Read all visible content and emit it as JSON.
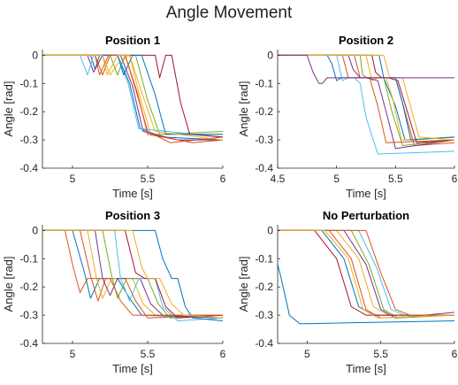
{
  "figure_title": "Angle Movement",
  "colors": {
    "axis": "#262626",
    "text": "#262626",
    "series_palette": [
      "#0072BD",
      "#D95319",
      "#EDB120",
      "#7E2F8E",
      "#77AC30",
      "#4DBEEE",
      "#A2142F"
    ]
  },
  "chart_data": [
    {
      "type": "line",
      "title": "Position 1",
      "xlabel": "Time [s]",
      "ylabel": "Angle [rad]",
      "xlim": [
        4.8,
        6.0
      ],
      "ylim": [
        -0.4,
        0.02
      ],
      "xticks": [
        5,
        5.5,
        6
      ],
      "xtick_labels": [
        "5",
        "5.5",
        "6"
      ],
      "yticks": [
        0,
        -0.1,
        -0.2,
        -0.3,
        -0.4
      ],
      "ytick_labels": [
        "0",
        "-0.1",
        "-0.2",
        "-0.3",
        "-0.4"
      ],
      "grid": false,
      "series": [
        {
          "x": [
            4.8,
            5.12,
            5.15,
            5.18,
            5.3,
            5.38,
            5.45,
            5.6,
            6.0
          ],
          "y": [
            0.0,
            0.0,
            -0.05,
            0.0,
            0.0,
            -0.1,
            -0.26,
            -0.29,
            -0.3
          ]
        },
        {
          "x": [
            4.8,
            5.15,
            5.2,
            5.25,
            5.35,
            5.42,
            5.5,
            5.65,
            6.0
          ],
          "y": [
            0.0,
            0.0,
            -0.07,
            0.0,
            0.0,
            -0.12,
            -0.27,
            -0.31,
            -0.29
          ]
        },
        {
          "x": [
            4.8,
            5.2,
            5.25,
            5.3,
            5.38,
            5.45,
            5.52,
            6.0
          ],
          "y": [
            0.0,
            0.0,
            -0.07,
            -0.03,
            0.0,
            -0.15,
            -0.28,
            -0.28
          ]
        },
        {
          "x": [
            4.8,
            5.1,
            5.14,
            5.2,
            5.32,
            5.4,
            5.47,
            5.7,
            6.0
          ],
          "y": [
            0.0,
            0.0,
            -0.06,
            0.0,
            0.0,
            -0.11,
            -0.27,
            -0.3,
            -0.3
          ]
        },
        {
          "x": [
            4.8,
            5.25,
            5.3,
            5.35,
            5.42,
            5.5,
            5.58,
            6.0
          ],
          "y": [
            0.0,
            0.0,
            -0.07,
            0.0,
            0.0,
            -0.16,
            -0.28,
            -0.27
          ]
        },
        {
          "x": [
            4.8,
            5.05,
            5.1,
            5.14,
            5.3,
            5.37,
            5.44,
            6.0
          ],
          "y": [
            0.0,
            0.0,
            -0.07,
            0.0,
            0.0,
            -0.1,
            -0.26,
            -0.29
          ]
        },
        {
          "x": [
            4.8,
            5.55,
            5.58,
            5.62,
            5.66,
            5.72,
            5.78,
            6.0
          ],
          "y": [
            0.0,
            0.0,
            -0.08,
            0.0,
            0.0,
            -0.17,
            -0.28,
            -0.29
          ]
        },
        {
          "x": [
            4.8,
            5.3,
            5.34,
            5.4,
            5.46,
            5.55,
            5.62,
            6.0
          ],
          "y": [
            0.0,
            0.0,
            -0.07,
            0.0,
            0.0,
            -0.14,
            -0.28,
            -0.28
          ]
        },
        {
          "x": [
            4.8,
            5.15,
            5.18,
            5.24,
            5.35,
            5.43,
            5.5,
            5.8,
            6.0
          ],
          "y": [
            0.0,
            0.0,
            -0.07,
            0.0,
            0.0,
            -0.13,
            -0.28,
            -0.31,
            -0.3
          ]
        },
        {
          "x": [
            4.8,
            5.2,
            5.23,
            5.3,
            5.38,
            5.46,
            5.55,
            6.0
          ],
          "y": [
            0.0,
            0.0,
            -0.07,
            0.0,
            0.0,
            -0.13,
            -0.27,
            -0.3
          ]
        }
      ]
    },
    {
      "type": "line",
      "title": "Position 2",
      "xlabel": "Time [s]",
      "ylabel": "Angle [rad]",
      "xlim": [
        4.5,
        6.0
      ],
      "ylim": [
        -0.4,
        0.02
      ],
      "xticks": [
        4.5,
        5,
        5.5,
        6
      ],
      "xtick_labels": [
        "4.5",
        "5",
        "5.5",
        "6"
      ],
      "yticks": [
        0,
        -0.1,
        -0.2,
        -0.3,
        -0.4
      ],
      "ytick_labels": [
        "0",
        "-0.1",
        "-0.2",
        "-0.3",
        "-0.4"
      ],
      "grid": false,
      "series": [
        {
          "x": [
            4.5,
            4.92,
            4.96,
            5.0,
            5.04,
            5.1,
            5.4,
            5.5,
            5.58,
            6.0
          ],
          "y": [
            0.0,
            0.0,
            -0.03,
            -0.09,
            -0.08,
            -0.08,
            -0.08,
            -0.18,
            -0.3,
            -0.29
          ]
        },
        {
          "x": [
            4.5,
            5.15,
            5.2,
            5.25,
            5.3,
            5.5,
            5.58,
            5.66,
            6.0
          ],
          "y": [
            0.0,
            0.0,
            -0.08,
            -0.08,
            -0.08,
            -0.08,
            -0.2,
            -0.32,
            -0.31
          ]
        },
        {
          "x": [
            4.5,
            5.25,
            5.3,
            5.35,
            5.42,
            5.48,
            5.55,
            6.0
          ],
          "y": [
            0.0,
            0.0,
            -0.09,
            -0.08,
            -0.08,
            -0.16,
            -0.3,
            -0.29
          ]
        },
        {
          "x": [
            4.5,
            5.1,
            5.14,
            5.2,
            5.25,
            5.35,
            5.42,
            5.5,
            6.0
          ],
          "y": [
            0.0,
            0.0,
            -0.05,
            -0.08,
            -0.08,
            -0.09,
            -0.2,
            -0.33,
            -0.3
          ]
        },
        {
          "x": [
            4.5,
            5.2,
            5.22,
            5.26,
            5.3,
            5.4,
            5.47,
            5.56,
            6.0
          ],
          "y": [
            0.0,
            0.0,
            -0.07,
            -0.08,
            -0.08,
            -0.08,
            -0.2,
            -0.32,
            -0.3
          ]
        },
        {
          "x": [
            4.5,
            5.0,
            5.05,
            5.1,
            5.15,
            5.2,
            5.25,
            5.35,
            6.0
          ],
          "y": [
            0.0,
            0.0,
            -0.09,
            -0.08,
            -0.08,
            -0.1,
            -0.22,
            -0.35,
            -0.34
          ]
        },
        {
          "x": [
            4.5,
            5.3,
            5.33,
            5.38,
            5.44,
            5.52,
            5.6,
            5.68,
            6.0
          ],
          "y": [
            0.0,
            0.0,
            -0.06,
            -0.08,
            -0.08,
            -0.09,
            -0.2,
            -0.31,
            -0.3
          ]
        },
        {
          "x": [
            4.5,
            5.36,
            5.4,
            5.45,
            5.5,
            5.56,
            5.63,
            6.0
          ],
          "y": [
            0.0,
            0.0,
            -0.08,
            -0.08,
            -0.08,
            -0.17,
            -0.3,
            -0.29
          ]
        },
        {
          "x": [
            4.5,
            5.05,
            5.1,
            5.18,
            5.28,
            5.35,
            5.42,
            6.0
          ],
          "y": [
            0.0,
            0.0,
            -0.08,
            -0.08,
            -0.08,
            -0.18,
            -0.31,
            -0.3
          ]
        },
        {
          "x": [
            4.5,
            5.4,
            5.45,
            5.5,
            5.56,
            5.62,
            5.7,
            6.0
          ],
          "y": [
            0.0,
            0.0,
            -0.08,
            -0.08,
            -0.08,
            -0.17,
            -0.29,
            -0.3
          ]
        },
        {
          "x": [
            4.5,
            4.75,
            4.8,
            4.85,
            4.88,
            4.92,
            6.0
          ],
          "y": [
            0.0,
            0.0,
            -0.06,
            -0.1,
            -0.1,
            -0.08,
            -0.08
          ]
        }
      ]
    },
    {
      "type": "line",
      "title": "Position 3",
      "xlabel": "Time [s]",
      "ylabel": "Angle [rad]",
      "xlim": [
        4.8,
        6.0
      ],
      "ylim": [
        -0.4,
        0.02
      ],
      "xticks": [
        5,
        5.5,
        6
      ],
      "xtick_labels": [
        "5",
        "5.5",
        "6"
      ],
      "yticks": [
        0,
        -0.1,
        -0.2,
        -0.3,
        -0.4
      ],
      "ytick_labels": [
        "0",
        "-0.1",
        "-0.2",
        "-0.3",
        "-0.4"
      ],
      "grid": false,
      "series": [
        {
          "x": [
            4.8,
            5.0,
            5.08,
            5.12,
            5.18,
            5.3,
            5.38,
            5.46,
            6.0
          ],
          "y": [
            0.0,
            0.0,
            -0.15,
            -0.24,
            -0.17,
            -0.17,
            -0.24,
            -0.3,
            -0.31
          ]
        },
        {
          "x": [
            4.8,
            5.05,
            5.12,
            5.17,
            5.22,
            5.35,
            5.42,
            5.5,
            6.0
          ],
          "y": [
            0.0,
            0.0,
            -0.16,
            -0.25,
            -0.17,
            -0.17,
            -0.25,
            -0.31,
            -0.3
          ]
        },
        {
          "x": [
            4.8,
            5.1,
            5.16,
            5.2,
            5.26,
            5.4,
            5.47,
            5.55,
            6.0
          ],
          "y": [
            0.0,
            0.0,
            -0.17,
            -0.24,
            -0.17,
            -0.17,
            -0.26,
            -0.3,
            -0.3
          ]
        },
        {
          "x": [
            4.8,
            5.15,
            5.2,
            5.25,
            5.3,
            5.45,
            5.52,
            5.6,
            6.0
          ],
          "y": [
            0.0,
            0.0,
            -0.17,
            -0.23,
            -0.17,
            -0.17,
            -0.26,
            -0.3,
            -0.31
          ]
        },
        {
          "x": [
            4.8,
            5.2,
            5.26,
            5.3,
            5.36,
            5.5,
            5.57,
            5.65,
            6.0
          ],
          "y": [
            0.0,
            0.0,
            -0.16,
            -0.24,
            -0.17,
            -0.17,
            -0.26,
            -0.31,
            -0.3
          ]
        },
        {
          "x": [
            4.8,
            5.28,
            5.32,
            5.38,
            5.44,
            5.55,
            5.6,
            5.7,
            6.0
          ],
          "y": [
            0.0,
            0.0,
            -0.17,
            -0.25,
            -0.17,
            -0.17,
            -0.27,
            -0.32,
            -0.31
          ]
        },
        {
          "x": [
            4.8,
            5.35,
            5.42,
            5.48,
            5.55,
            5.62,
            5.7,
            6.0
          ],
          "y": [
            0.0,
            0.0,
            -0.15,
            -0.17,
            -0.17,
            -0.27,
            -0.31,
            -0.3
          ]
        },
        {
          "x": [
            4.8,
            5.55,
            5.6,
            5.66,
            5.7,
            5.75,
            5.8,
            6.0
          ],
          "y": [
            0.0,
            0.0,
            -0.1,
            -0.17,
            -0.17,
            -0.27,
            -0.31,
            -0.32
          ]
        },
        {
          "x": [
            4.8,
            4.95,
            5.0,
            5.05,
            5.1,
            5.25,
            5.32,
            5.4,
            6.0
          ],
          "y": [
            0.0,
            0.0,
            -0.12,
            -0.22,
            -0.17,
            -0.17,
            -0.25,
            -0.3,
            -0.3
          ]
        },
        {
          "x": [
            4.8,
            5.4,
            5.46,
            5.5,
            5.58,
            5.66,
            5.74,
            6.0
          ],
          "y": [
            0.0,
            0.0,
            -0.13,
            -0.17,
            -0.17,
            -0.26,
            -0.3,
            -0.31
          ]
        }
      ]
    },
    {
      "type": "line",
      "title": "No Perturbation",
      "xlabel": "Time [s]",
      "ylabel": "Angle [rad]",
      "xlim": [
        4.8,
        6.0
      ],
      "ylim": [
        -0.4,
        0.02
      ],
      "xticks": [
        5,
        5.5,
        6
      ],
      "xtick_labels": [
        "5",
        "5.5",
        "6"
      ],
      "yticks": [
        0,
        -0.1,
        -0.2,
        -0.3,
        -0.4
      ],
      "ytick_labels": [
        "0",
        "-0.1",
        "-0.2",
        "-0.3",
        "-0.4"
      ],
      "grid": false,
      "series": [
        {
          "x": [
            4.8,
            5.1,
            5.25,
            5.35,
            5.45,
            6.0
          ],
          "y": [
            0.0,
            0.0,
            -0.1,
            -0.27,
            -0.3,
            -0.3
          ]
        },
        {
          "x": [
            4.8,
            5.15,
            5.3,
            5.4,
            5.5,
            6.0
          ],
          "y": [
            0.0,
            0.0,
            -0.1,
            -0.28,
            -0.31,
            -0.3
          ]
        },
        {
          "x": [
            4.8,
            5.2,
            5.35,
            5.45,
            5.55,
            6.0
          ],
          "y": [
            0.0,
            0.0,
            -0.1,
            -0.27,
            -0.3,
            -0.3
          ]
        },
        {
          "x": [
            4.8,
            5.25,
            5.4,
            5.5,
            5.6,
            6.0
          ],
          "y": [
            0.0,
            0.0,
            -0.12,
            -0.28,
            -0.31,
            -0.29
          ]
        },
        {
          "x": [
            4.8,
            5.3,
            5.42,
            5.52,
            5.62,
            6.0
          ],
          "y": [
            0.0,
            0.0,
            -0.12,
            -0.28,
            -0.31,
            -0.3
          ]
        },
        {
          "x": [
            4.8,
            5.35,
            5.47,
            5.57,
            5.66,
            6.0
          ],
          "y": [
            0.0,
            0.0,
            -0.13,
            -0.28,
            -0.3,
            -0.3
          ]
        },
        {
          "x": [
            4.8,
            5.05,
            5.2,
            5.3,
            5.4,
            6.0
          ],
          "y": [
            0.0,
            0.0,
            -0.1,
            -0.27,
            -0.3,
            -0.3
          ]
        },
        {
          "x": [
            4.8,
            4.82,
            4.88,
            4.95,
            5.0,
            6.0
          ],
          "y": [
            -0.12,
            -0.16,
            -0.3,
            -0.33,
            -0.33,
            -0.32
          ]
        },
        {
          "x": [
            4.8,
            5.4,
            5.5,
            5.6,
            5.7,
            6.0
          ],
          "y": [
            0.0,
            0.0,
            -0.15,
            -0.28,
            -0.3,
            -0.3
          ]
        },
        {
          "x": [
            4.8,
            5.12,
            5.28,
            5.38,
            5.48,
            6.0
          ],
          "y": [
            0.0,
            0.0,
            -0.1,
            -0.28,
            -0.31,
            -0.3
          ]
        }
      ]
    }
  ]
}
